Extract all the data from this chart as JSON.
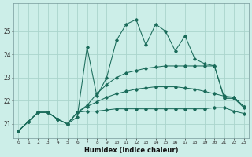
{
  "xlabel": "Humidex (Indice chaleur)",
  "background_color": "#cceee8",
  "grid_color": "#aad4cc",
  "line_color": "#1a6b5a",
  "xlim": [
    -0.5,
    23.5
  ],
  "ylim": [
    20.4,
    26.2
  ],
  "yticks": [
    21,
    22,
    23,
    24,
    25
  ],
  "ytick_labels": [
    "21",
    "22",
    "23",
    "24",
    "25"
  ],
  "xtick_labels": [
    "0",
    "1",
    "2",
    "3",
    "4",
    "5",
    "6",
    "7",
    "8",
    "9",
    "10",
    "11",
    "12",
    "13",
    "14",
    "15",
    "16",
    "17",
    "18",
    "19",
    "20",
    "21",
    "22",
    "23"
  ],
  "series": [
    [
      20.7,
      21.1,
      21.5,
      21.5,
      21.2,
      21.0,
      21.3,
      24.3,
      22.2,
      23.0,
      24.6,
      25.3,
      25.5,
      24.4,
      25.3,
      25.0,
      24.15,
      24.8,
      23.8,
      23.6,
      23.5,
      22.1,
      22.1,
      21.7
    ],
    [
      20.7,
      21.1,
      21.5,
      21.5,
      21.2,
      21.0,
      21.5,
      21.55,
      21.55,
      21.6,
      21.65,
      21.65,
      21.65,
      21.65,
      21.65,
      21.65,
      21.65,
      21.65,
      21.65,
      21.65,
      21.7,
      21.7,
      21.55,
      21.45
    ],
    [
      20.7,
      21.1,
      21.5,
      21.5,
      21.2,
      21.0,
      21.5,
      21.8,
      22.3,
      22.7,
      23.0,
      23.2,
      23.3,
      23.4,
      23.45,
      23.5,
      23.5,
      23.5,
      23.5,
      23.5,
      23.5,
      22.15,
      22.15,
      21.75
    ],
    [
      20.7,
      21.1,
      21.5,
      21.5,
      21.2,
      21.0,
      21.5,
      21.75,
      21.95,
      22.15,
      22.3,
      22.4,
      22.5,
      22.55,
      22.6,
      22.6,
      22.6,
      22.55,
      22.5,
      22.4,
      22.3,
      22.2,
      22.15,
      21.75
    ]
  ]
}
